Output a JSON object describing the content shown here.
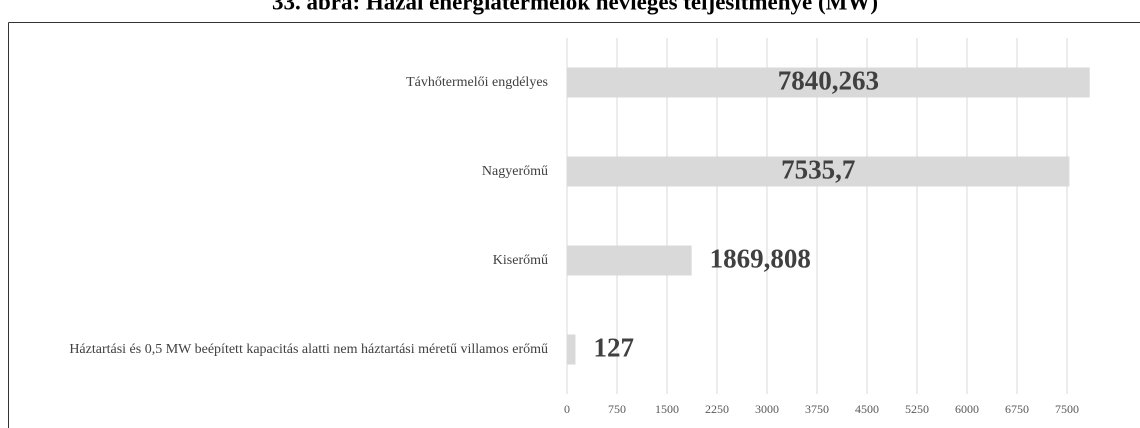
{
  "chart_data": {
    "type": "hbar",
    "title": "33. ábra: Hazai energiatermelők névleges teljesítménye (MW)",
    "categories": [
      "Távhőtermelői engdélyes",
      "Nagyerőmű",
      "Kiserőmű",
      "Háztartási és 0,5 MW beépített kapacitás alatti nem háztartási méretű villamos erőmű"
    ],
    "values": [
      7840.263,
      7535.7,
      1869.808,
      127
    ],
    "value_labels": [
      "7840,263",
      "7535,7",
      "1869,808",
      "127"
    ],
    "color": "#d9d9d9",
    "xlim": [
      0,
      7875
    ],
    "xticks": [
      0,
      750,
      1500,
      2250,
      3000,
      3750,
      4500,
      5250,
      6000,
      6750,
      7500
    ],
    "grid": true
  }
}
